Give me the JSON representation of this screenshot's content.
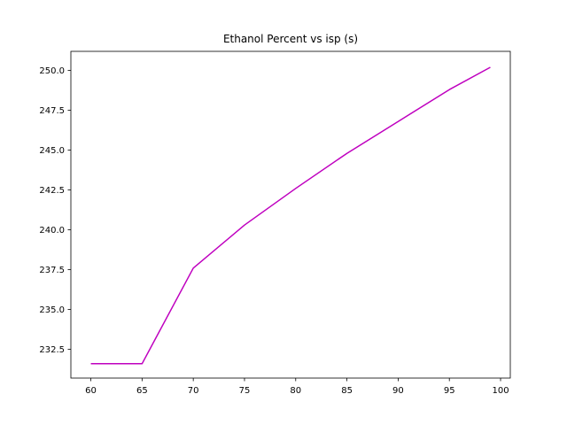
{
  "chart_data": {
    "type": "line",
    "title": "Ethanol Percent vs isp (s)",
    "xlabel": "",
    "ylabel": "",
    "xlim": [
      58.05,
      100.95
    ],
    "ylim": [
      230.7,
      251.2
    ],
    "xticks": [
      60,
      65,
      70,
      75,
      80,
      85,
      90,
      95,
      100
    ],
    "yticks": [
      232.5,
      235.0,
      237.5,
      240.0,
      242.5,
      245.0,
      247.5,
      250.0
    ],
    "xtick_labels": [
      "60",
      "65",
      "70",
      "75",
      "80",
      "85",
      "90",
      "95",
      "100"
    ],
    "ytick_labels": [
      "232.5",
      "235.0",
      "237.5",
      "240.0",
      "242.5",
      "245.0",
      "247.5",
      "250.0"
    ],
    "grid": false,
    "series": [
      {
        "color": "#bf00bf",
        "x": [
          60,
          65,
          70,
          75,
          80,
          85,
          90,
          95,
          99
        ],
        "y": [
          231.6,
          231.6,
          237.6,
          240.3,
          242.6,
          244.8,
          246.8,
          248.8,
          250.2
        ]
      }
    ]
  }
}
